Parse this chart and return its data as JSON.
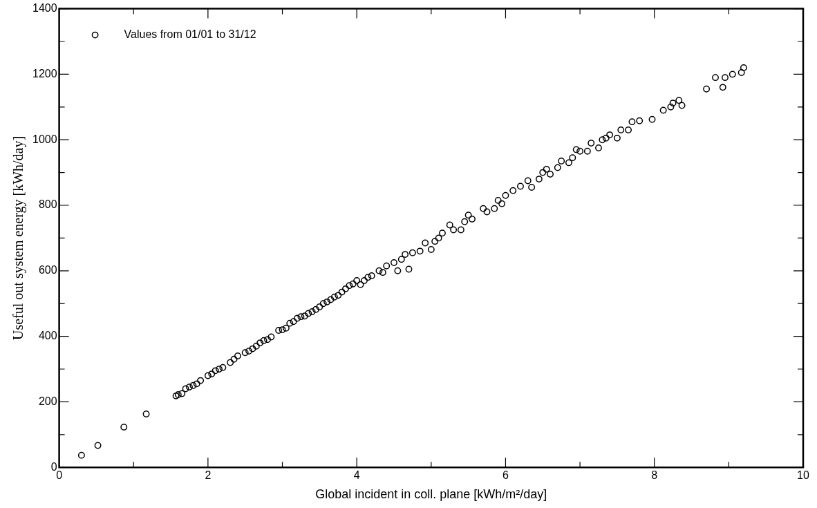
{
  "chart_data": {
    "type": "scatter",
    "xlabel": "Global incident in coll. plane [kWh/m²/day]",
    "ylabel": "Useful out system energy [kWh/day]",
    "xlim": [
      0,
      10
    ],
    "ylim": [
      0,
      1400
    ],
    "xticks": [
      0,
      {
        "value": 1,
        "label": null
      },
      2,
      {
        "value": 3,
        "label": null
      },
      4,
      {
        "value": 5,
        "label": null
      },
      6,
      {
        "value": 7,
        "label": null
      },
      8,
      {
        "value": 9,
        "label": null
      },
      10
    ],
    "yticks": [
      0,
      {
        "value": 100,
        "label": null
      },
      200,
      {
        "value": 300,
        "label": null
      },
      400,
      {
        "value": 500,
        "label": null
      },
      600,
      {
        "value": 700,
        "label": null
      },
      800,
      {
        "value": 900,
        "label": null
      },
      1000,
      {
        "value": 1100,
        "label": null
      },
      1200,
      {
        "value": 1300,
        "label": null
      },
      1400
    ],
    "grid": false,
    "legend": "top left",
    "marker": "circle",
    "series": [
      {
        "name": "Values from 01/01 to 31/12",
        "color": "#000000",
        "x": [
          0.3,
          0.52,
          0.87,
          1.17,
          1.57,
          1.6,
          1.65,
          1.7,
          1.75,
          1.8,
          1.85,
          1.9,
          2.0,
          2.05,
          2.1,
          2.15,
          2.2,
          2.3,
          2.35,
          2.4,
          2.5,
          2.55,
          2.6,
          2.65,
          2.7,
          2.75,
          2.8,
          2.85,
          2.95,
          3.0,
          3.05,
          3.1,
          3.15,
          3.2,
          3.25,
          3.3,
          3.35,
          3.4,
          3.45,
          3.5,
          3.55,
          3.6,
          3.65,
          3.7,
          3.75,
          3.8,
          3.85,
          3.9,
          3.95,
          4.0,
          4.05,
          4.1,
          4.15,
          4.2,
          4.3,
          4.35,
          4.4,
          4.5,
          4.55,
          4.6,
          4.65,
          4.7,
          4.75,
          4.85,
          4.92,
          5.0,
          5.05,
          5.1,
          5.15,
          5.25,
          5.3,
          5.4,
          5.45,
          5.5,
          5.55,
          5.7,
          5.75,
          5.85,
          5.9,
          5.95,
          6.0,
          6.1,
          6.2,
          6.3,
          6.35,
          6.45,
          6.5,
          6.55,
          6.6,
          6.7,
          6.75,
          6.85,
          6.9,
          6.95,
          7.0,
          7.1,
          7.15,
          7.25,
          7.3,
          7.35,
          7.4,
          7.5,
          7.55,
          7.65,
          7.7,
          7.8,
          7.97,
          8.12,
          8.22,
          8.25,
          8.33,
          8.37,
          8.7,
          8.82,
          8.92,
          8.95,
          9.05,
          9.17,
          9.2
        ],
        "values": [
          37,
          67,
          123,
          163,
          218,
          222,
          225,
          240,
          245,
          250,
          255,
          265,
          280,
          285,
          295,
          300,
          305,
          320,
          330,
          340,
          350,
          355,
          362,
          370,
          380,
          387,
          390,
          398,
          418,
          420,
          425,
          440,
          445,
          455,
          460,
          462,
          470,
          475,
          482,
          490,
          500,
          505,
          512,
          520,
          525,
          535,
          545,
          555,
          560,
          570,
          558,
          570,
          580,
          585,
          600,
          595,
          615,
          625,
          600,
          635,
          650,
          605,
          655,
          660,
          685,
          665,
          690,
          700,
          715,
          740,
          725,
          725,
          750,
          770,
          758,
          790,
          780,
          790,
          815,
          805,
          830,
          845,
          858,
          875,
          855,
          880,
          900,
          910,
          895,
          915,
          935,
          930,
          945,
          970,
          965,
          965,
          990,
          975,
          1000,
          1005,
          1015,
          1005,
          1030,
          1030,
          1055,
          1058,
          1062,
          1090,
          1100,
          1112,
          1120,
          1105,
          1155,
          1190,
          1160,
          1190,
          1200,
          1205,
          1220
        ]
      }
    ]
  }
}
